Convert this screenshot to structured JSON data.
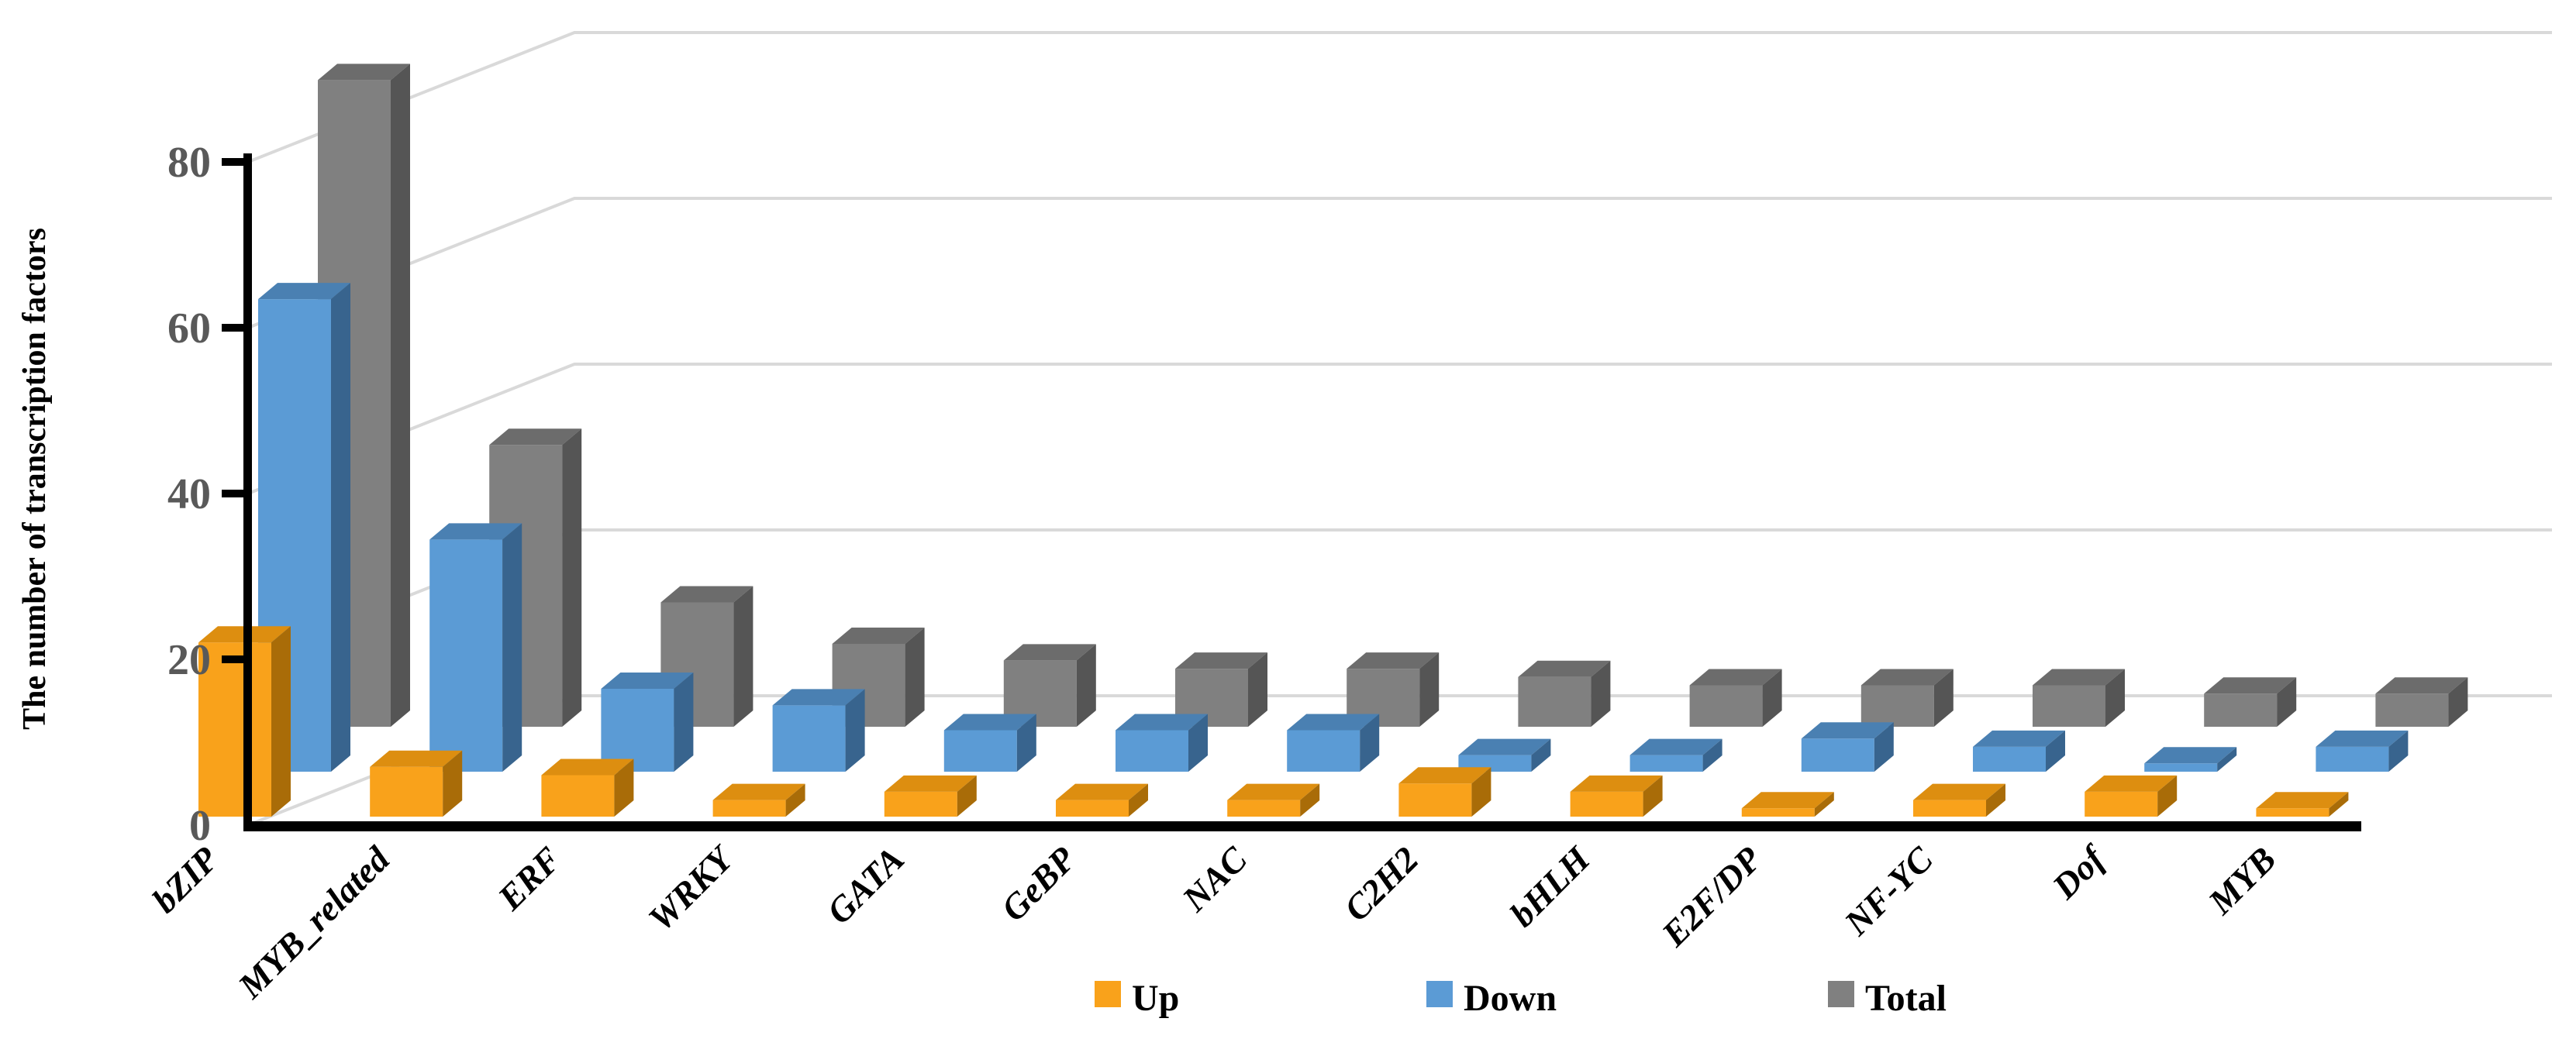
{
  "chart_data": {
    "type": "bar",
    "variant": "3d-column",
    "title": "",
    "xlabel": "",
    "ylabel": "The number of transcription factors",
    "ylim": [
      0,
      80
    ],
    "yticks": [
      0,
      20,
      40,
      60,
      80
    ],
    "grid": true,
    "legend_position": "bottom-center",
    "categories": [
      "bZIP",
      "MYB_related",
      "ERF",
      "WRKY",
      "GATA",
      "GeBP",
      "NAC",
      "C2H2",
      "bHLH",
      "E2F/DP",
      "NF-YC",
      "Dof",
      "MYB"
    ],
    "series": [
      {
        "name": "Up",
        "values": [
          21,
          6,
          5,
          2,
          3,
          2,
          2,
          4,
          3,
          1,
          2,
          3,
          1
        ],
        "color": "#F9A21B",
        "color_top": "#DD8E10",
        "color_side": "#A96C08"
      },
      {
        "name": "Down",
        "values": [
          57,
          28,
          10,
          8,
          5,
          5,
          5,
          2,
          2,
          4,
          3,
          1,
          3
        ],
        "color": "#5B9BD5",
        "color_top": "#4A80B2",
        "color_side": "#38648E"
      },
      {
        "name": "Total",
        "values": [
          78,
          34,
          15,
          10,
          8,
          7,
          7,
          6,
          5,
          5,
          5,
          4,
          4
        ],
        "color": "#808080",
        "color_top": "#6C6C6C",
        "color_side": "#555555"
      }
    ],
    "colors": {
      "gridline": "#D9D9D9",
      "axis": "#000000",
      "tick_label": "#595959",
      "background": "#FFFFFF"
    }
  }
}
